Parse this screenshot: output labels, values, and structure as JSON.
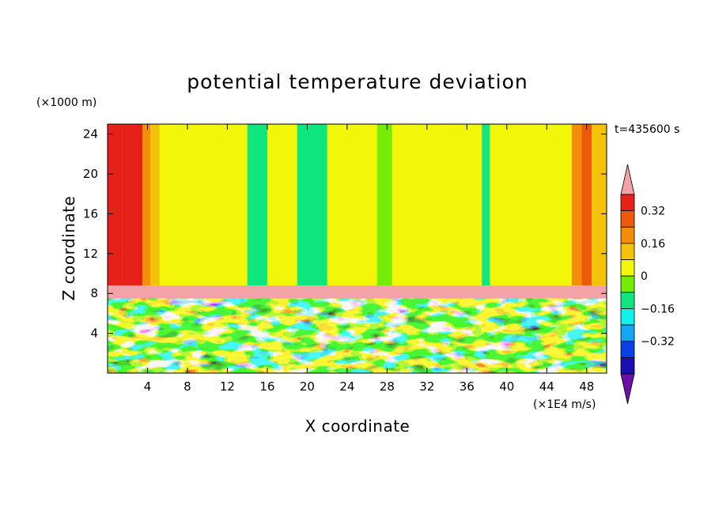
{
  "chart_data": {
    "type": "heatmap",
    "title": "potential temperature deviation",
    "xlabel": "X coordinate",
    "ylabel": "Z coordinate",
    "x_unit": "(×1E4 m/s)",
    "y_unit": "(×1000 m)",
    "time_label": "t=435600  s",
    "xlim": [
      0,
      50
    ],
    "ylim": [
      0,
      25
    ],
    "x_ticks": [
      4,
      8,
      12,
      16,
      20,
      24,
      28,
      32,
      36,
      40,
      44,
      48
    ],
    "y_ticks": [
      4,
      8,
      12,
      16,
      20,
      24
    ],
    "colorbar": {
      "levels": [
        -0.48,
        -0.4,
        -0.32,
        -0.24,
        -0.16,
        -0.08,
        0,
        0.08,
        0.16,
        0.24,
        0.32,
        0.4
      ],
      "colors": [
        "#6a0fa8",
        "#1c0fb4",
        "#0a3fe6",
        "#12a6f4",
        "#11f2ec",
        "#10e67f",
        "#74ec06",
        "#f2f70a",
        "#f5c20a",
        "#f28e0a",
        "#ee5a0c",
        "#e52118",
        "#f3a3a8"
      ],
      "tick_labels": [
        "0.32",
        "0.16",
        "0",
        "−0.16",
        "−0.32"
      ],
      "tick_values": [
        0.32,
        0.16,
        0,
        -0.16,
        -0.32
      ],
      "extend": "both"
    },
    "layers": [
      {
        "z_range": [
          0,
          7.5
        ],
        "description": "turbulent mixed layer with values spanning −0.48 to 0.40"
      },
      {
        "z_range": [
          7.5,
          8.8
        ],
        "value": 0.44
      },
      {
        "z_range": [
          8.8,
          25
        ],
        "value": 0.02
      }
    ],
    "upper_columns": [
      {
        "x": [
          0,
          1.5
        ],
        "value": 0.36
      },
      {
        "x": [
          1.5,
          3.5
        ],
        "value": 0.36
      },
      {
        "x": [
          3.5,
          4.3
        ],
        "value": 0.2
      },
      {
        "x": [
          4.3,
          5.2
        ],
        "value": 0.12
      },
      {
        "x": [
          9.5,
          11.5
        ],
        "value": 0.06
      },
      {
        "x": [
          14,
          16
        ],
        "value": -0.1
      },
      {
        "x": [
          19,
          22
        ],
        "value": -0.1
      },
      {
        "x": [
          27,
          28.5
        ],
        "value": -0.06
      },
      {
        "x": [
          37.5,
          38.3
        ],
        "value": -0.1
      },
      {
        "x": [
          46.5,
          47.5
        ],
        "value": 0.2
      },
      {
        "x": [
          47.5,
          48.5
        ],
        "value": 0.28
      },
      {
        "x": [
          48.5,
          50
        ],
        "value": 0.12
      }
    ]
  }
}
